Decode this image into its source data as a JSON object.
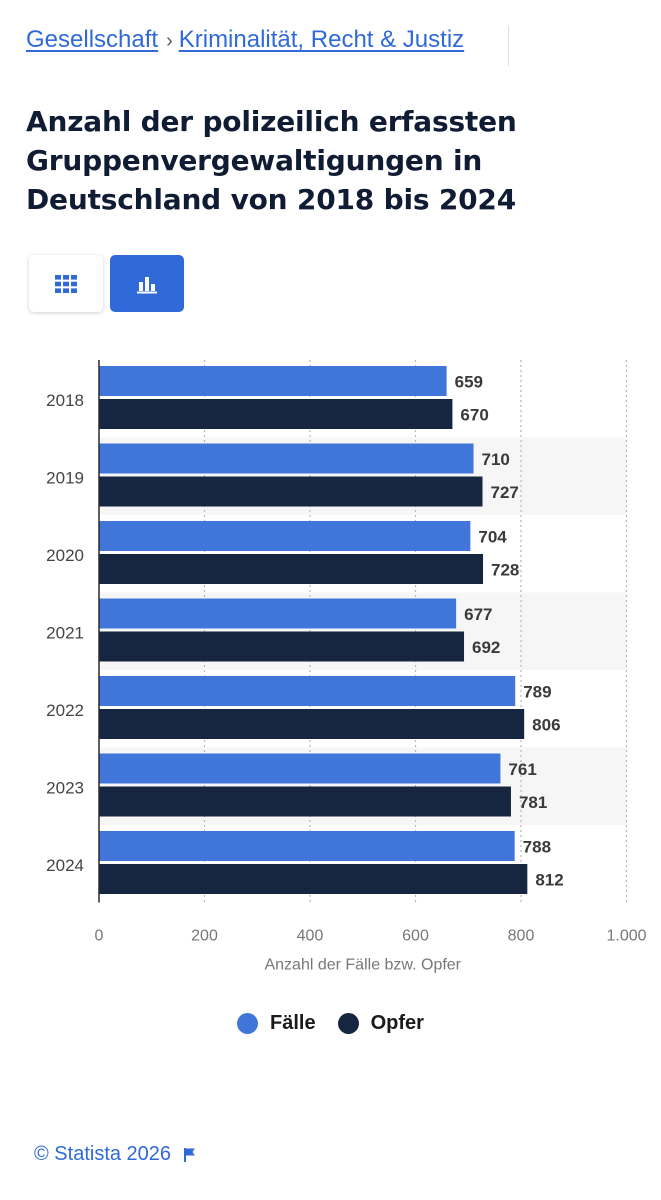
{
  "breadcrumb": {
    "item1": "Gesellschaft",
    "separator": "›",
    "item2": "Kriminalität, Recht & Justiz"
  },
  "toggle": {
    "table_icon": "grid-icon",
    "chart_icon": "bar-chart-icon"
  },
  "colors": {
    "accent": "#2f6ad8",
    "faelle": "#4076d9",
    "opfer": "#172640",
    "band": "#f6f6f6"
  },
  "chart_data": {
    "type": "bar",
    "orientation": "horizontal",
    "title": "Anzahl der polizeilich erfassten Gruppenvergewaltigungen in Deutschland von 2018 bis 2024",
    "categories": [
      "2018",
      "2019",
      "2020",
      "2021",
      "2022",
      "2023",
      "2024"
    ],
    "series": [
      {
        "name": "Fälle",
        "values": [
          659,
          710,
          704,
          677,
          789,
          761,
          788
        ]
      },
      {
        "name": "Opfer",
        "values": [
          670,
          727,
          728,
          692,
          806,
          781,
          812
        ]
      }
    ],
    "xlabel": "Anzahl der Fälle bzw. Opfer",
    "ylabel": "",
    "xlim": [
      0,
      1000
    ],
    "xticks": [
      0,
      200,
      400,
      600,
      800,
      1000
    ],
    "xtick_labels": [
      "0",
      "200",
      "400",
      "600",
      "800",
      "1.000"
    ],
    "grid": true,
    "legend_position": "bottom-center"
  },
  "footer": {
    "copyright": "© Statista 2026",
    "flag_icon": "flag-icon"
  }
}
